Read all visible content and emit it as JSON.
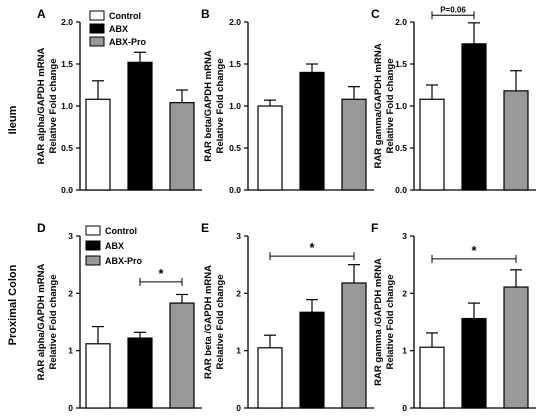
{
  "row_labels": [
    "Ileum",
    "Proximal Colon"
  ],
  "legend": [
    {
      "label": "Control",
      "color": "#ffffff"
    },
    {
      "label": "ABX",
      "color": "#000000"
    },
    {
      "label": "ABX-Pro",
      "color": "#999999"
    }
  ],
  "chart_data": [
    {
      "type": "bar",
      "panel": "A",
      "categories": [
        "Control",
        "ABX",
        "ABX-Pro"
      ],
      "values": [
        1.08,
        1.52,
        1.04
      ],
      "errors": [
        0.22,
        0.12,
        0.15
      ],
      "ylabel_lines": [
        "RAR alpha/GAPDH mRNA",
        "Relative Fold change"
      ],
      "ylim": [
        0,
        2.0
      ],
      "yticks": [
        "0.0",
        "0.5",
        "1.0",
        "1.5",
        "2.0"
      ],
      "annotation": null
    },
    {
      "type": "bar",
      "panel": "B",
      "categories": [
        "Control",
        "ABX",
        "ABX-Pro"
      ],
      "values": [
        1.0,
        1.4,
        1.08
      ],
      "errors": [
        0.07,
        0.1,
        0.15
      ],
      "ylabel_lines": [
        "RAR beta/GAPDH mRNA",
        "Relative Fold change"
      ],
      "ylim": [
        0,
        2.0
      ],
      "yticks": [
        "0.0",
        "0.5",
        "1.0",
        "1.5",
        "2.0"
      ],
      "annotation": null
    },
    {
      "type": "bar",
      "panel": "C",
      "categories": [
        "Control",
        "ABX",
        "ABX-Pro"
      ],
      "values": [
        1.08,
        1.74,
        1.18
      ],
      "errors": [
        0.17,
        0.25,
        0.24
      ],
      "ylabel_lines": [
        "RAR gamma/GAPDH mRNA",
        "Relative Fold change"
      ],
      "ylim": [
        0,
        2.0
      ],
      "yticks": [
        "0.0",
        "0.5",
        "1.0",
        "1.5",
        "2.0"
      ],
      "annotation": {
        "text": "P=0.06",
        "from": 0,
        "to": 1,
        "y": 2.08
      }
    },
    {
      "type": "bar",
      "panel": "D",
      "categories": [
        "Control",
        "ABX",
        "ABX-Pro"
      ],
      "values": [
        1.12,
        1.22,
        1.83
      ],
      "errors": [
        0.3,
        0.1,
        0.15
      ],
      "ylabel_lines": [
        "RAR alpha/GAPDH mRNA",
        "Relative Fold change"
      ],
      "ylim": [
        0,
        3
      ],
      "yticks": [
        "0",
        "1",
        "2",
        "3"
      ],
      "annotation": {
        "text": "*",
        "from": 1,
        "to": 2,
        "y": 2.2
      }
    },
    {
      "type": "bar",
      "panel": "E",
      "categories": [
        "Control",
        "ABX",
        "ABX-Pro"
      ],
      "values": [
        1.05,
        1.67,
        2.18
      ],
      "errors": [
        0.22,
        0.22,
        0.32
      ],
      "ylabel_lines": [
        "RAR beta /GAPDH mRNA",
        "Relative Fold change"
      ],
      "ylim": [
        0,
        3
      ],
      "yticks": [
        "0",
        "1",
        "2",
        "3"
      ],
      "annotation": {
        "text": "*",
        "from": 0,
        "to": 2,
        "y": 2.65
      }
    },
    {
      "type": "bar",
      "panel": "F",
      "categories": [
        "Control",
        "ABX",
        "ABX-Pro"
      ],
      "values": [
        1.06,
        1.56,
        2.11
      ],
      "errors": [
        0.25,
        0.27,
        0.3
      ],
      "ylabel_lines": [
        "RAR gamma /GAPDH mRNA",
        "Relative Fold change"
      ],
      "ylim": [
        0,
        3
      ],
      "yticks": [
        "0",
        "1",
        "2",
        "3"
      ],
      "annotation": {
        "text": "*",
        "from": 0,
        "to": 2,
        "y": 2.6
      }
    }
  ]
}
